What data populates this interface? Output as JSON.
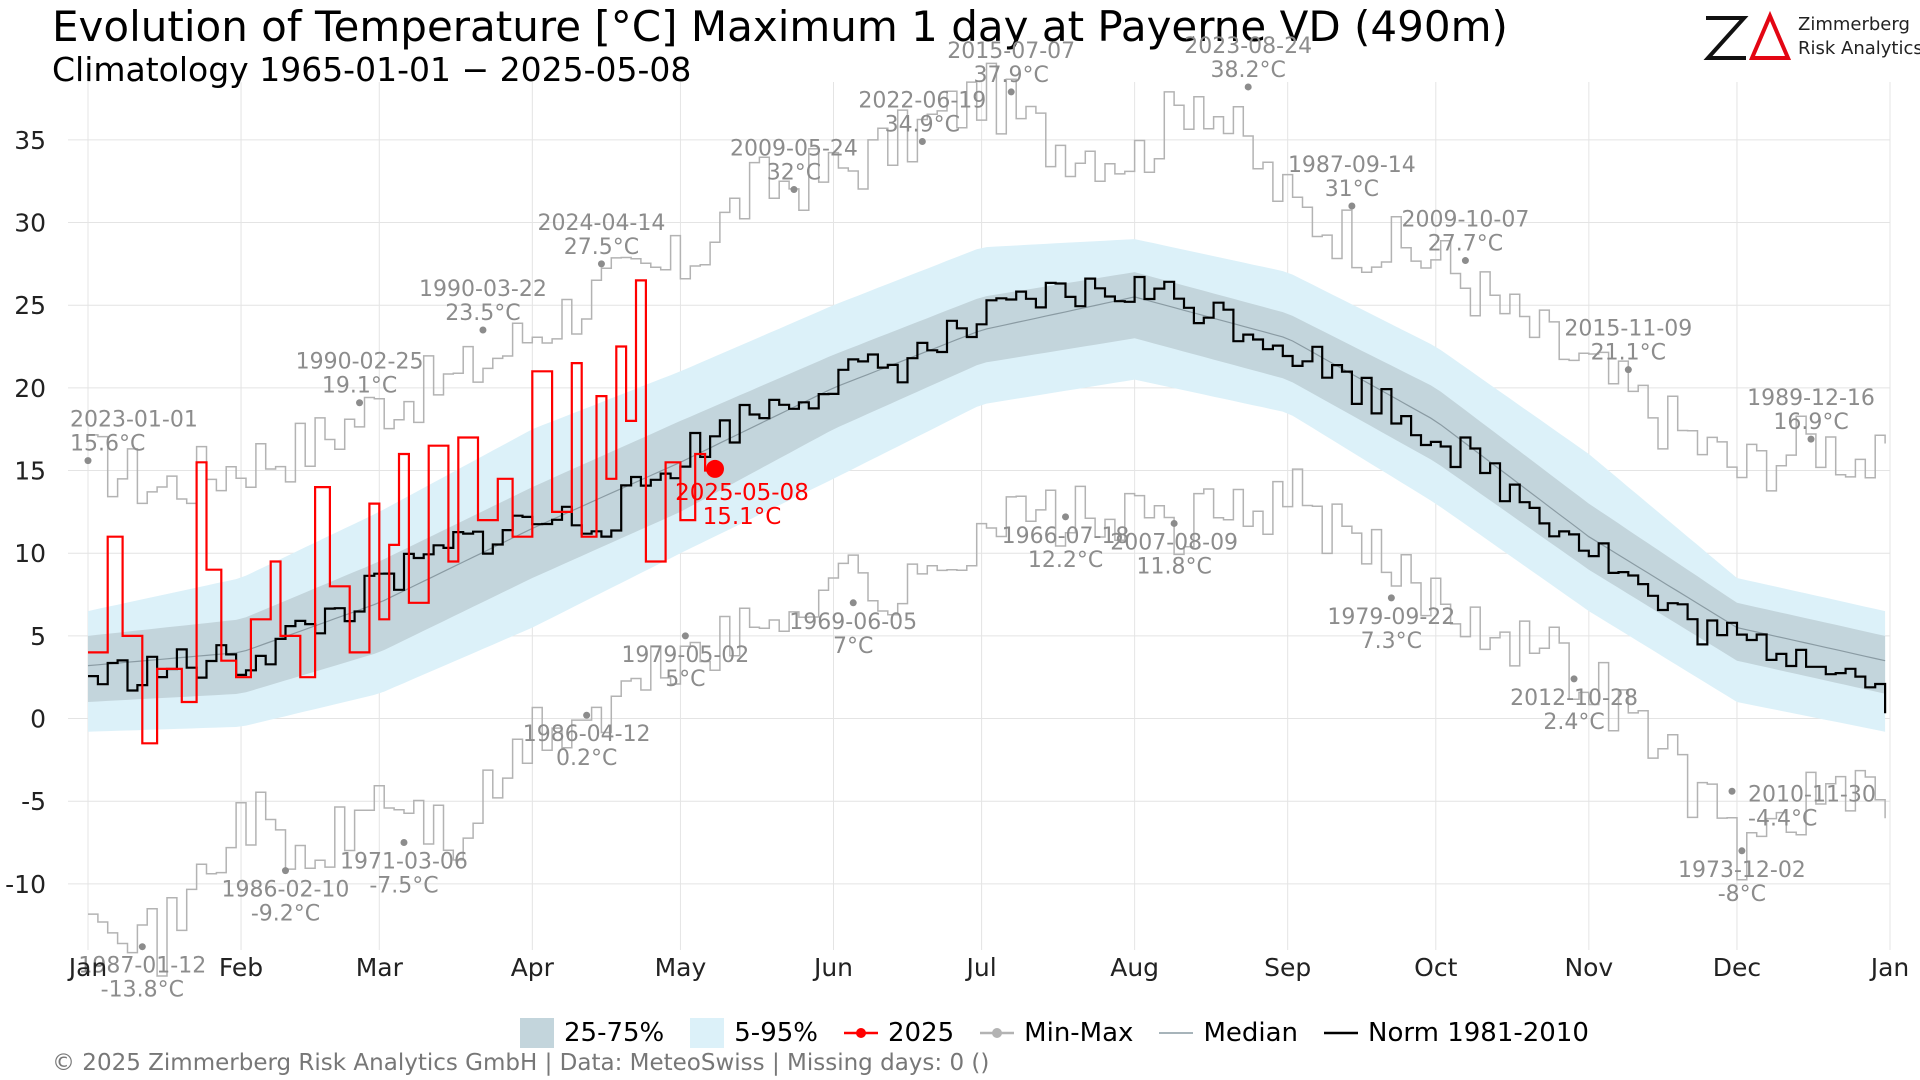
{
  "header": {
    "title": "Evolution of Temperature [°C] Maximum 1 day at Payerne  VD (490m)",
    "subtitle": "Climatology 1965-01-01 − 2025-05-08"
  },
  "logo": {
    "line1": "Zimmerberg",
    "line2": "Risk Analytics",
    "mark_color": "#e30613"
  },
  "footer": {
    "text": "©  2025 Zimmerberg Risk Analytics GmbH | Data: MeteoSwiss | Missing days: 0 ()"
  },
  "legend": {
    "items": [
      {
        "key": "iqr",
        "label": "25-75%"
      },
      {
        "key": "p90",
        "label": "5-95%"
      },
      {
        "key": "current",
        "label": "2025"
      },
      {
        "key": "minmax",
        "label": "Min-Max"
      },
      {
        "key": "median",
        "label": "Median"
      },
      {
        "key": "norm",
        "label": "Norm 1981-2010"
      }
    ]
  },
  "colors": {
    "iqr": "#c3d5dc",
    "p90": "#dcf1f9",
    "current": "#ff0000",
    "minmax": "#b3b3b3",
    "median": "#8a9ba3",
    "norm": "#000000",
    "annotation": "#8c8c8c",
    "grid": "#e4e4e4"
  },
  "chart_data": {
    "type": "line",
    "x_axis": {
      "ticks": [
        "Jan",
        "Feb",
        "Mar",
        "Apr",
        "May",
        "Jun",
        "Jul",
        "Aug",
        "Sep",
        "Oct",
        "Nov",
        "Dec",
        "Jan"
      ],
      "tick_days": [
        1,
        32,
        60,
        91,
        121,
        152,
        182,
        213,
        244,
        274,
        305,
        335,
        366
      ],
      "xlim": [
        1,
        366
      ]
    },
    "y_axis": {
      "ticks": [
        35,
        30,
        25,
        20,
        15,
        10,
        5,
        0,
        -5,
        -10
      ],
      "tick_labels": [
        "35",
        "30",
        "25",
        "20",
        "15",
        "10",
        "5",
        "0",
        "-5",
        "-10"
      ],
      "ylim": [
        -14,
        38.5
      ]
    },
    "grid": true,
    "legend_position": "bottom",
    "median": {
      "day": [
        1,
        32,
        60,
        91,
        121,
        152,
        182,
        213,
        244,
        274,
        305,
        335,
        365
      ],
      "value": [
        3.2,
        4.0,
        7.0,
        11.5,
        15.5,
        20.0,
        23.5,
        25.5,
        23.0,
        18.0,
        11.0,
        5.5,
        3.5
      ]
    },
    "band_iqr": {
      "day": [
        1,
        32,
        60,
        91,
        121,
        152,
        182,
        213,
        244,
        274,
        305,
        335,
        365
      ],
      "low": [
        1.0,
        1.5,
        4.0,
        8.5,
        12.5,
        17.5,
        21.5,
        23.0,
        20.5,
        15.5,
        9.0,
        3.5,
        1.5
      ],
      "high": [
        5.0,
        6.0,
        9.5,
        14.0,
        18.0,
        22.0,
        25.5,
        27.0,
        24.5,
        20.0,
        13.0,
        7.0,
        5.0
      ]
    },
    "band_p90": {
      "day": [
        1,
        32,
        60,
        91,
        121,
        152,
        182,
        213,
        244,
        274,
        305,
        335,
        365
      ],
      "low": [
        -0.8,
        -0.5,
        1.5,
        5.5,
        10.0,
        14.5,
        19.0,
        20.5,
        18.5,
        13.0,
        6.5,
        1.0,
        -0.8
      ],
      "high": [
        6.5,
        8.5,
        12.5,
        17.5,
        21.0,
        25.0,
        28.5,
        29.0,
        27.0,
        22.5,
        16.0,
        8.5,
        6.5
      ]
    },
    "norm_1981_2010": {
      "day": [
        1,
        15,
        32,
        45,
        60,
        75,
        91,
        105,
        121,
        135,
        152,
        165,
        182,
        195,
        213,
        225,
        244,
        258,
        274,
        290,
        305,
        320,
        335,
        350,
        365
      ],
      "value": [
        2.5,
        3.0,
        3.5,
        5.5,
        8.0,
        10.5,
        12.0,
        12.0,
        16.0,
        18.5,
        20.5,
        21.5,
        24.0,
        25.5,
        26.0,
        25.0,
        22.5,
        20.0,
        17.0,
        13.5,
        10.5,
        6.5,
        4.5,
        4.0,
        1.5
      ]
    },
    "max_record_curve": {
      "day": [
        1,
        15,
        32,
        45,
        60,
        75,
        91,
        105,
        121,
        135,
        152,
        165,
        182,
        195,
        213,
        225,
        244,
        258,
        274,
        290,
        305,
        320,
        335,
        350,
        365
      ],
      "value": [
        15.6,
        14.0,
        15.5,
        16.5,
        19.1,
        20.5,
        23.5,
        26.0,
        27.5,
        32.0,
        33.0,
        34.9,
        37.9,
        35.0,
        34.0,
        38.2,
        31.0,
        29.0,
        27.7,
        24.0,
        21.1,
        18.0,
        15.0,
        16.9,
        15.0
      ]
    },
    "min_record_curve": {
      "day": [
        1,
        15,
        32,
        45,
        60,
        75,
        91,
        105,
        121,
        135,
        152,
        165,
        182,
        195,
        213,
        225,
        244,
        258,
        274,
        290,
        305,
        320,
        335,
        350,
        365
      ],
      "value": [
        -10.0,
        -13.8,
        -5.5,
        -9.2,
        -4.5,
        -7.5,
        -1.0,
        0.2,
        4.0,
        5.0,
        9.0,
        7.0,
        12.0,
        12.2,
        11.8,
        11.8,
        13.5,
        10.0,
        7.3,
        5.0,
        2.4,
        -2.0,
        -8.0,
        -4.4,
        -5.5
      ]
    },
    "series_2025": {
      "name": "2025",
      "day": [
        1,
        5,
        8,
        12,
        15,
        20,
        23,
        25,
        28,
        31,
        34,
        38,
        40,
        44,
        47,
        50,
        54,
        58,
        60,
        62,
        64,
        66,
        70,
        74,
        76,
        80,
        84,
        87,
        91,
        95,
        99,
        101,
        104,
        106,
        108,
        110,
        112,
        114,
        118,
        121,
        124,
        126,
        128
      ],
      "value": [
        4.0,
        11.0,
        5.0,
        -1.5,
        3.0,
        1.0,
        15.5,
        9.0,
        3.5,
        2.5,
        6.0,
        9.5,
        5.0,
        2.5,
        14.0,
        8.0,
        4.0,
        13.0,
        6.0,
        10.5,
        16.0,
        7.0,
        16.5,
        9.5,
        17.0,
        12.0,
        14.5,
        11.0,
        21.0,
        12.5,
        21.5,
        11.0,
        19.5,
        14.5,
        22.5,
        18.0,
        26.5,
        9.5,
        15.5,
        12.0,
        16.0,
        15.0,
        15.1
      ]
    },
    "latest_point": {
      "day": 128,
      "value": 15.1,
      "label": "2025-05-08",
      "value_label": "15.1°C"
    },
    "annotations": [
      {
        "id": "max-2023-01-01",
        "day": 1,
        "value": 15.6,
        "date": "2023-01-01",
        "label": "15.6°C",
        "pos": "above"
      },
      {
        "id": "max-1990-02-25",
        "day": 56,
        "value": 19.1,
        "date": "1990-02-25",
        "label": "19.1°C",
        "pos": "above"
      },
      {
        "id": "max-1990-03-22",
        "day": 81,
        "value": 23.5,
        "date": "1990-03-22",
        "label": "23.5°C",
        "pos": "above"
      },
      {
        "id": "max-2024-04-14",
        "day": 105,
        "value": 27.5,
        "date": "2024-04-14",
        "label": "27.5°C",
        "pos": "above"
      },
      {
        "id": "max-2009-05-24",
        "day": 144,
        "value": 32.0,
        "date": "2009-05-24",
        "label": "32°C",
        "pos": "above"
      },
      {
        "id": "max-2022-06-19",
        "day": 170,
        "value": 34.9,
        "date": "2022-06-19",
        "label": "34.9°C",
        "pos": "above"
      },
      {
        "id": "max-2015-07-07",
        "day": 188,
        "value": 37.9,
        "date": "2015-07-07",
        "label": "37.9°C",
        "pos": "above"
      },
      {
        "id": "max-2023-08-24",
        "day": 236,
        "value": 38.2,
        "date": "2023-08-24",
        "label": "38.2°C",
        "pos": "above"
      },
      {
        "id": "max-1987-09-14",
        "day": 257,
        "value": 31.0,
        "date": "1987-09-14",
        "label": "31°C",
        "pos": "above"
      },
      {
        "id": "max-2009-10-07",
        "day": 280,
        "value": 27.7,
        "date": "2009-10-07",
        "label": "27.7°C",
        "pos": "above"
      },
      {
        "id": "max-2015-11-09",
        "day": 313,
        "value": 21.1,
        "date": "2015-11-09",
        "label": "21.1°C",
        "pos": "above"
      },
      {
        "id": "max-1989-12-16",
        "day": 350,
        "value": 16.9,
        "date": "1989-12-16",
        "label": "16.9°C",
        "pos": "above"
      },
      {
        "id": "min-1987-01-12",
        "day": 12,
        "value": -13.8,
        "date": "1987-01-12",
        "label": "-13.8°C",
        "pos": "below"
      },
      {
        "id": "min-1986-02-10",
        "day": 41,
        "value": -9.2,
        "date": "1986-02-10",
        "label": "-9.2°C",
        "pos": "below"
      },
      {
        "id": "min-1971-03-06",
        "day": 65,
        "value": -7.5,
        "date": "1971-03-06",
        "label": "-7.5°C",
        "pos": "below"
      },
      {
        "id": "min-1986-04-12",
        "day": 102,
        "value": 0.2,
        "date": "1986-04-12",
        "label": "0.2°C",
        "pos": "below"
      },
      {
        "id": "min-1979-05-02",
        "day": 122,
        "value": 5.0,
        "date": "1979-05-02",
        "label": "5°C",
        "pos": "below"
      },
      {
        "id": "min-1969-06-05",
        "day": 156,
        "value": 7.0,
        "date": "1969-06-05",
        "label": "7°C",
        "pos": "below"
      },
      {
        "id": "min-1966-07-18",
        "day": 199,
        "value": 12.2,
        "date": "1966-07-18",
        "label": "12.2°C",
        "pos": "below"
      },
      {
        "id": "min-2007-08-09",
        "day": 221,
        "value": 11.8,
        "date": "2007-08-09",
        "label": "11.8°C",
        "pos": "below"
      },
      {
        "id": "min-1979-09-22",
        "day": 265,
        "value": 7.3,
        "date": "1979-09-22",
        "label": "7.3°C",
        "pos": "below"
      },
      {
        "id": "min-2012-10-28",
        "day": 302,
        "value": 2.4,
        "date": "2012-10-28",
        "label": "2.4°C",
        "pos": "below"
      },
      {
        "id": "min-2010-11-30",
        "day": 334,
        "value": -4.4,
        "date": "2010-11-30",
        "label": "-4.4°C",
        "pos": "right"
      },
      {
        "id": "min-1973-12-02",
        "day": 336,
        "value": -8.0,
        "date": "1973-12-02",
        "label": "-8°C",
        "pos": "below"
      }
    ]
  }
}
